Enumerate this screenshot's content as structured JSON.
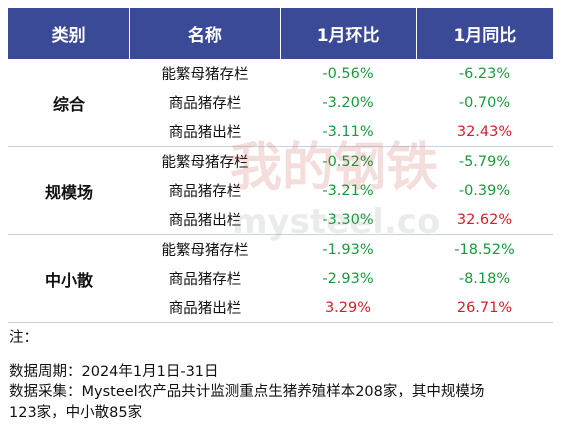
{
  "table": {
    "headers": [
      "类别",
      "名称",
      "1月环比",
      "1月同比"
    ],
    "groups": [
      {
        "name": "综合",
        "rows": [
          {
            "item": "能繁母猪存栏",
            "mom": "-0.56%",
            "yoy": "-6.23%"
          },
          {
            "item": "商品猪存栏",
            "mom": "-3.20%",
            "yoy": "-0.70%"
          },
          {
            "item": "商品猪出栏",
            "mom": "-3.11%",
            "yoy": "32.43%"
          }
        ]
      },
      {
        "name": "规模场",
        "rows": [
          {
            "item": "能繁母猪存栏",
            "mom": "-0.52%",
            "yoy": "-5.79%"
          },
          {
            "item": "商品猪存栏",
            "mom": "-3.21%",
            "yoy": "-0.39%"
          },
          {
            "item": "商品猪出栏",
            "mom": "-3.30%",
            "yoy": "32.62%"
          }
        ]
      },
      {
        "name": "中小散",
        "rows": [
          {
            "item": "能繁母猪存栏",
            "mom": "-1.93%",
            "yoy": "-18.52%"
          },
          {
            "item": "商品猪存栏",
            "mom": "-2.93%",
            "yoy": "-8.18%"
          },
          {
            "item": "商品猪出栏",
            "mom": "3.29%",
            "yoy": "26.71%"
          }
        ]
      }
    ]
  },
  "notes": {
    "label": "注：",
    "period": "数据周期：2024年1月1日-31日",
    "source_line1": "数据采集：Mysteel农产品共计监测重点生猪养殖样本208家，其中规模场",
    "source_line2": "123家，中小散85家"
  },
  "watermark": {
    "text_cn": "我的钢铁",
    "text_en": "mysteel.com"
  },
  "colors": {
    "header_bg": "#3a4a97",
    "negative": "#1a9a3c",
    "positive": "#d4202a"
  }
}
